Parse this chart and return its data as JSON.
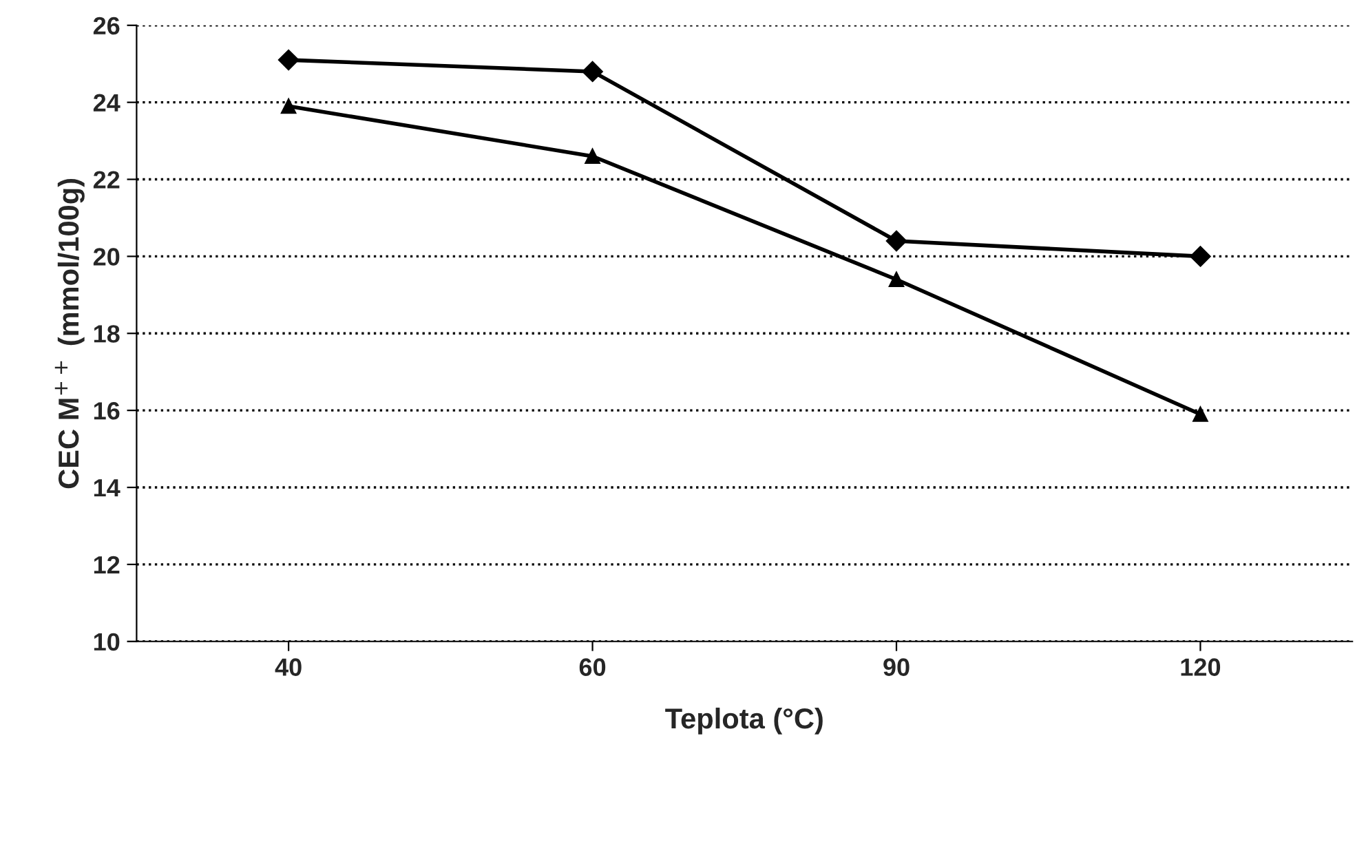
{
  "chart_data": {
    "type": "line",
    "xlabel": "Teplota (°C)",
    "ylabel": "CEC M$^{++}$ (mmol/100g)",
    "categories": [
      "40",
      "60",
      "90",
      "120"
    ],
    "series": [
      {
        "color": "#000000",
        "marker": "diamond",
        "values": [
          25.1,
          24.8,
          20.4,
          20.0
        ]
      },
      {
        "color": "#000000",
        "marker": "triangle",
        "values": [
          23.9,
          22.6,
          19.4,
          15.9
        ]
      }
    ],
    "ylim": [
      10,
      26
    ],
    "yticks": [
      10,
      12,
      14,
      16,
      18,
      20,
      22,
      24,
      26
    ],
    "grid": "y",
    "line_style": "solid"
  }
}
